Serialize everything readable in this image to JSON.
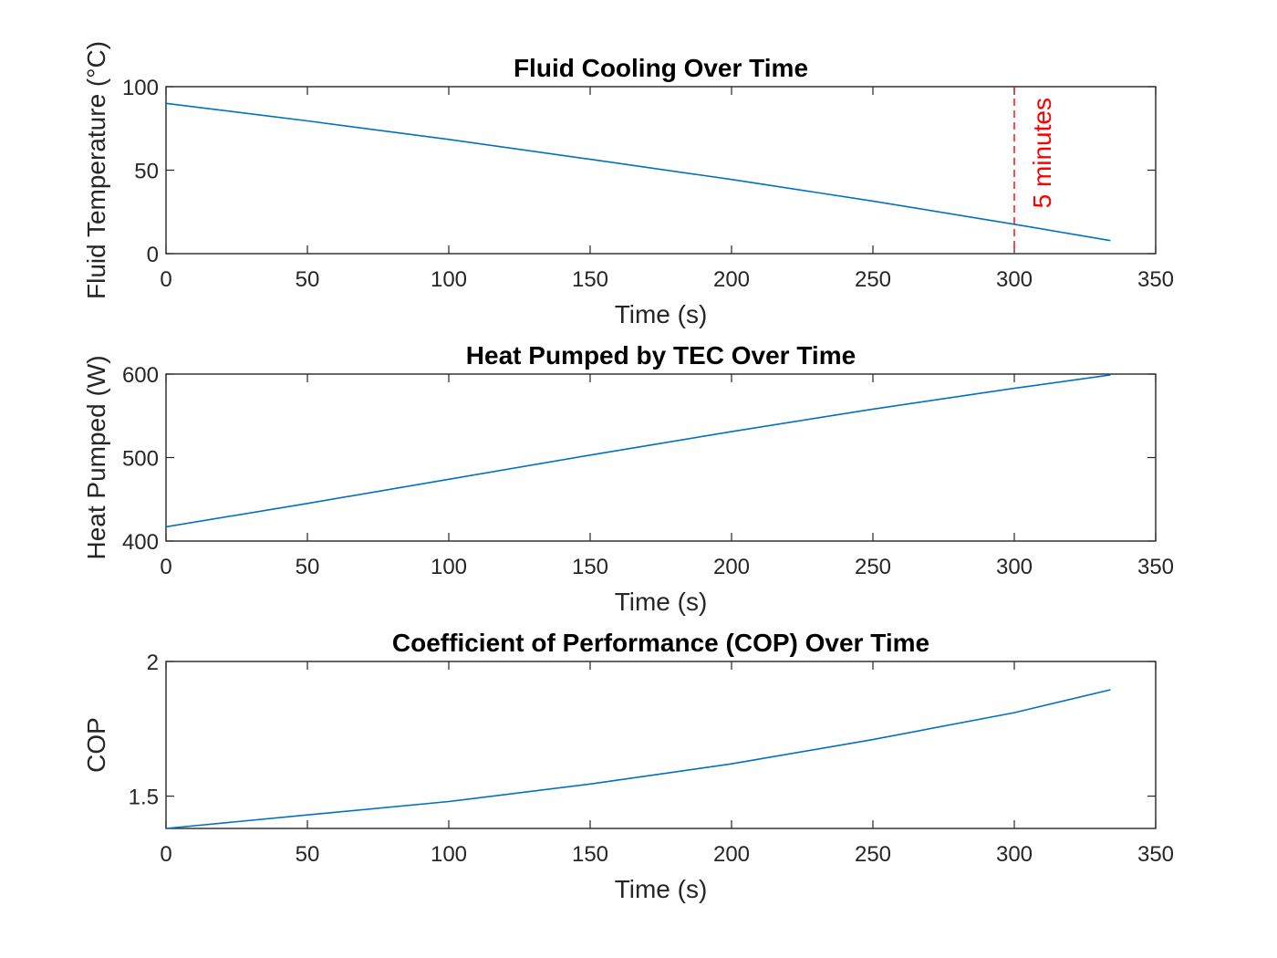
{
  "chart_data": [
    {
      "type": "line",
      "title": "Fluid Cooling Over Time",
      "xlabel": "Time (s)",
      "ylabel": "Fluid Temperature (°C)",
      "xlim": [
        0,
        350
      ],
      "ylim": [
        0,
        100
      ],
      "xticks": [
        "0",
        "50",
        "100",
        "150",
        "200",
        "250",
        "300",
        "350"
      ],
      "yticks": [
        "0",
        "50",
        "100"
      ],
      "grid": false,
      "color": "#0072BD",
      "series": [
        {
          "x": [
            0,
            50,
            100,
            150,
            200,
            250,
            300,
            334
          ],
          "y": [
            90,
            79.5,
            68.4,
            56.5,
            44.4,
            31.5,
            17.6,
            7.8
          ]
        }
      ],
      "annotations": [
        {
          "type": "vertical-dashed-line",
          "x": 300,
          "text": "5 minutes",
          "color": "#ff0000"
        }
      ]
    },
    {
      "type": "line",
      "title": "Heat Pumped by TEC Over Time",
      "xlabel": "Time (s)",
      "ylabel": "Heat Pumped (W)",
      "xlim": [
        0,
        350
      ],
      "ylim": [
        400,
        600
      ],
      "xticks": [
        "0",
        "50",
        "100",
        "150",
        "200",
        "250",
        "300",
        "350"
      ],
      "yticks": [
        "400",
        "500",
        "600"
      ],
      "grid": false,
      "color": "#0072BD",
      "series": [
        {
          "x": [
            0,
            50,
            100,
            150,
            200,
            250,
            300,
            334
          ],
          "y": [
            417,
            445,
            474,
            503,
            531,
            558,
            583,
            599
          ]
        }
      ]
    },
    {
      "type": "line",
      "title": "Coefficient of Performance (COP) Over Time",
      "xlabel": "Time (s)",
      "ylabel": "COP",
      "xlim": [
        0,
        350
      ],
      "ylim": [
        1.38,
        2.0
      ],
      "xticks": [
        "0",
        "50",
        "100",
        "150",
        "200",
        "250",
        "300",
        "350"
      ],
      "yticks": [
        "1.5",
        "2"
      ],
      "grid": false,
      "color": "#0072BD",
      "series": [
        {
          "x": [
            0,
            50,
            100,
            150,
            200,
            250,
            300,
            334
          ],
          "y": [
            1.38,
            1.43,
            1.48,
            1.545,
            1.62,
            1.71,
            1.81,
            1.895
          ]
        }
      ]
    }
  ]
}
